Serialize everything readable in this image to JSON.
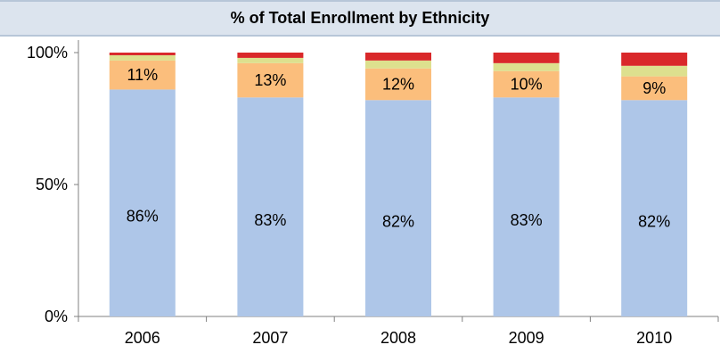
{
  "chart_data": {
    "type": "bar",
    "stacked": true,
    "title": "% of Total Enrollment by Ethnicity",
    "categories": [
      "2006",
      "2007",
      "2008",
      "2009",
      "2010"
    ],
    "ylim": [
      0,
      100
    ],
    "y_ticks": [
      "0%",
      "50%",
      "100%"
    ],
    "grid": false,
    "legend": "none",
    "series": [
      {
        "color": "#aec6e8",
        "values": [
          86,
          83,
          82,
          83,
          82
        ],
        "labels": [
          "86%",
          "83%",
          "82%",
          "83%",
          "82%"
        ]
      },
      {
        "color": "#fbbe7c",
        "values": [
          11,
          13,
          12,
          10,
          9
        ],
        "labels": [
          "11%",
          "13%",
          "12%",
          "10%",
          "9%"
        ]
      },
      {
        "color": "#dde08e",
        "values": [
          2,
          2,
          3,
          3,
          4
        ],
        "labels": [
          "",
          "",
          "",
          "",
          ""
        ]
      },
      {
        "color": "#d9282a",
        "values": [
          1,
          2,
          3,
          4,
          5
        ],
        "labels": [
          "",
          "",
          "",
          "",
          ""
        ]
      }
    ]
  }
}
